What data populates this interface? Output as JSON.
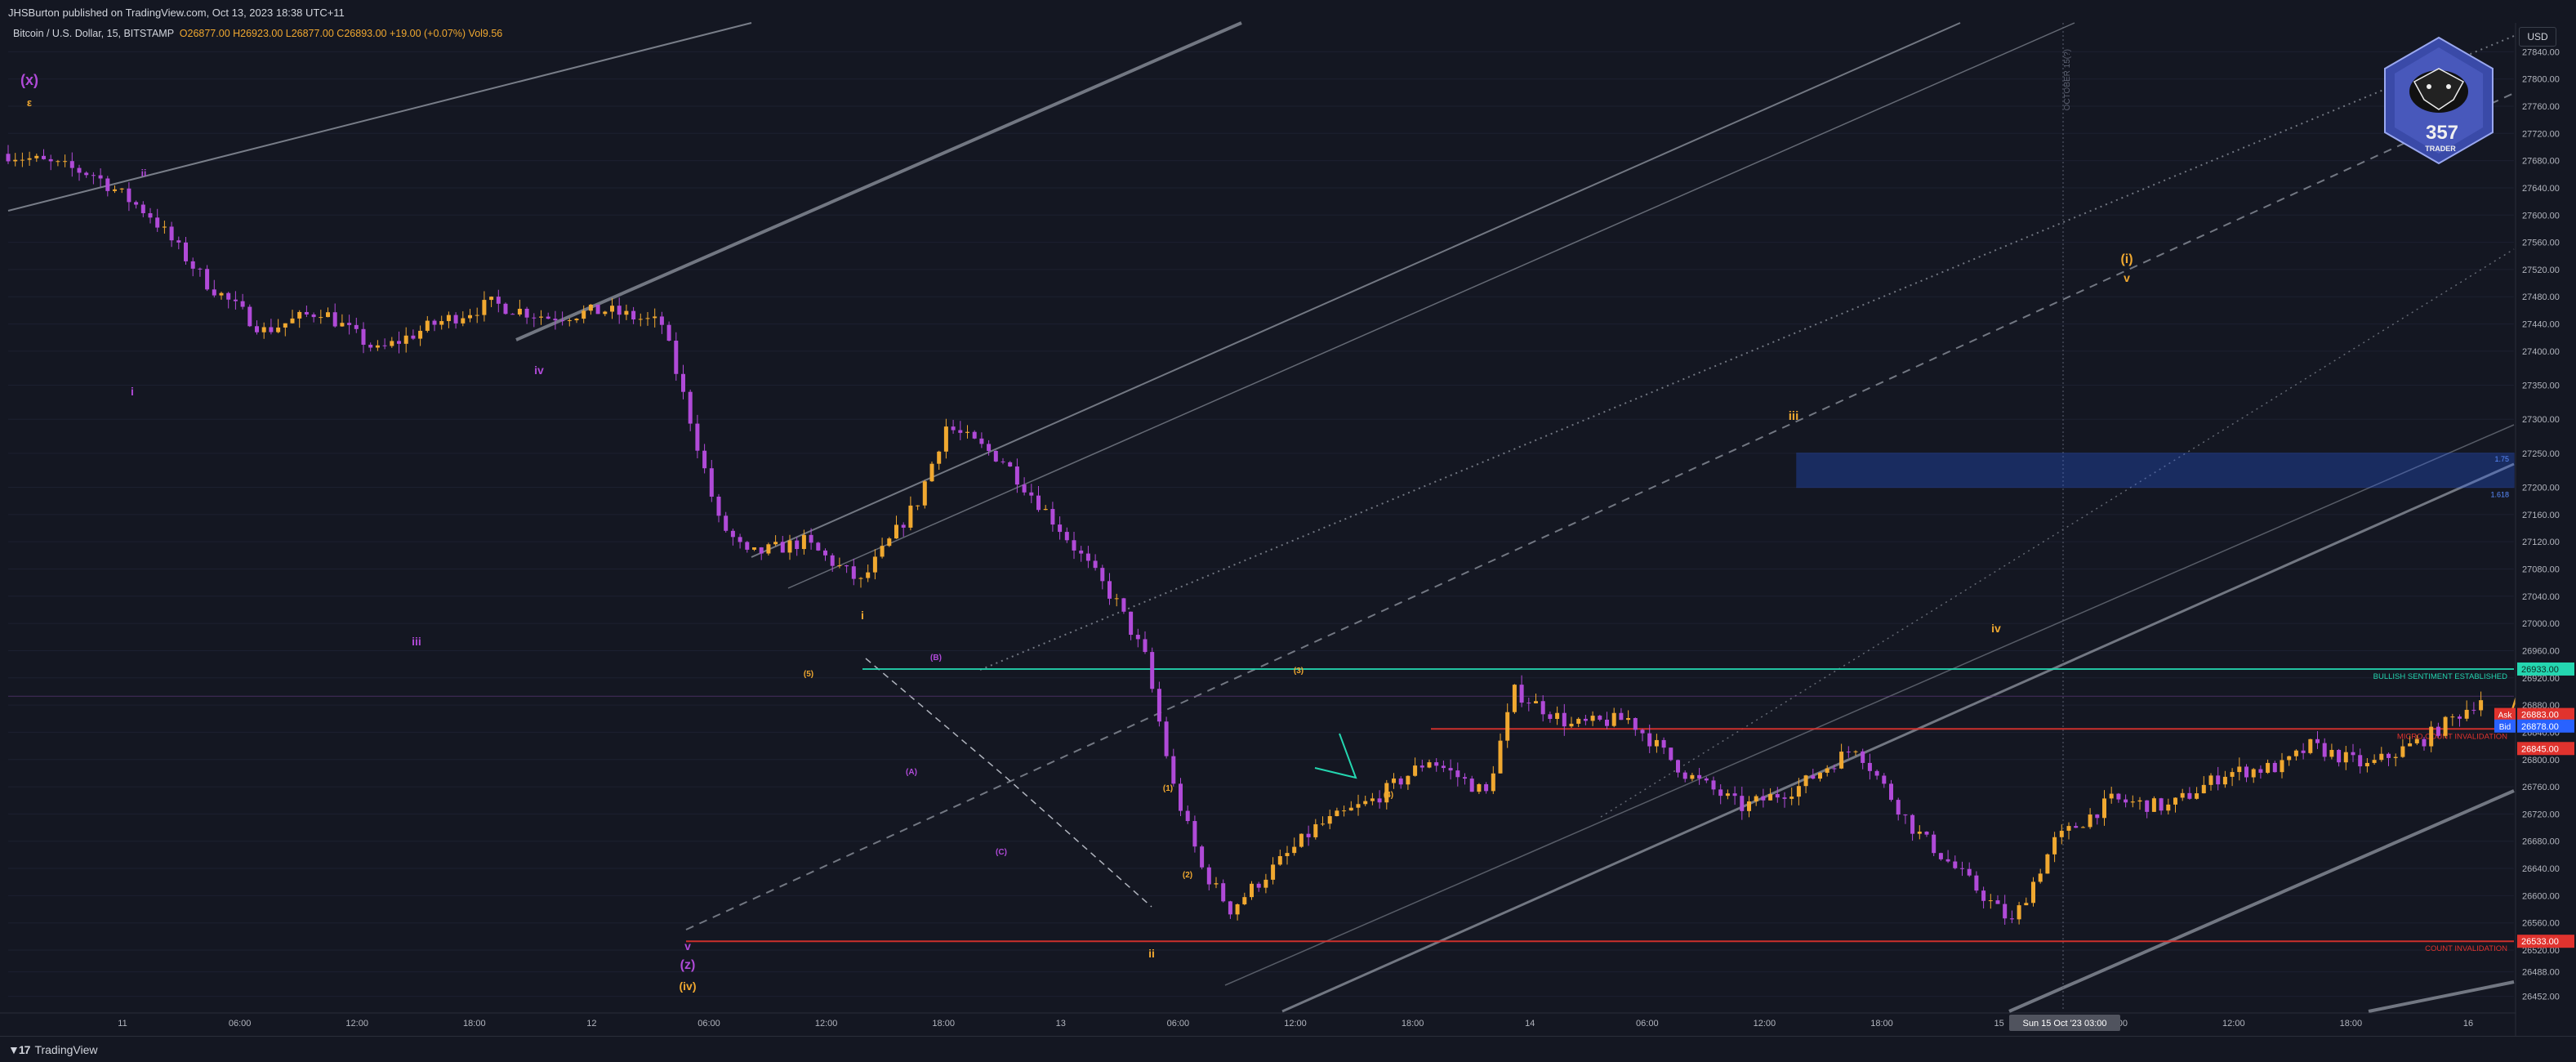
{
  "header": {
    "published_text": "JHSBurton published on TradingView.com, Oct 13, 2023 18:38 UTC+11",
    "symbol_text": "Bitcoin / U.S. Dollar, 15, BITSTAMP",
    "ohlc_text": "O26877.00  H26923.00  L26877.00  C26893.00  +19.00 (+0.07%)  Vol9.56"
  },
  "currency": "USD",
  "footer_brand": "TradingView",
  "logo_text": "357",
  "logo_subtext": "TRADER",
  "colors": {
    "background": "#141722",
    "purple": "#b04ad8",
    "orange": "#f0a830",
    "teal": "#24d6b0",
    "red": "#e0332e",
    "grey_line": "#9aa0ab",
    "blue_zone": "#2962ff"
  },
  "chart_data": {
    "type": "candlestick",
    "symbol": "BTCUSD",
    "exchange": "BITSTAMP",
    "interval": "15",
    "ylim": [
      26430,
      27880
    ],
    "y_ticks": [
      26452,
      26488,
      26520,
      26560,
      26600,
      26640,
      26680,
      26720,
      26760,
      26800,
      26840,
      26880,
      26920,
      26960,
      27000,
      27040,
      27080,
      27120,
      27160,
      27200,
      27250,
      27300,
      27350,
      27400,
      27440,
      27480,
      27520,
      27560,
      27600,
      27640,
      27680,
      27720,
      27760,
      27800,
      27840
    ],
    "x_ticks": [
      "11",
      "06:00",
      "12:00",
      "18:00",
      "12",
      "06:00",
      "12:00",
      "18:00",
      "13",
      "06:00",
      "12:00",
      "18:00",
      "14",
      "06:00",
      "12:00",
      "18:00",
      "15",
      "06:00",
      "12:00",
      "18:00",
      "16"
    ],
    "crosshair_x_label": "Sun 15 Oct '23   03:00",
    "vertical_text": "OCTOBER 15(?)",
    "price_path": [
      [
        0,
        27690
      ],
      [
        60,
        27660
      ],
      [
        100,
        27600
      ],
      [
        140,
        27500
      ],
      [
        180,
        27430
      ],
      [
        220,
        27460
      ],
      [
        260,
        27400
      ],
      [
        300,
        27440
      ],
      [
        340,
        27470
      ],
      [
        380,
        27450
      ],
      [
        420,
        27460
      ],
      [
        460,
        27440
      ],
      [
        480,
        27300
      ],
      [
        500,
        27150
      ],
      [
        520,
        27100
      ],
      [
        560,
        27120
      ],
      [
        600,
        27060
      ],
      [
        640,
        27180
      ],
      [
        660,
        27290
      ],
      [
        700,
        27240
      ],
      [
        740,
        27140
      ],
      [
        780,
        27030
      ],
      [
        800,
        26950
      ],
      [
        820,
        26760
      ],
      [
        840,
        26640
      ],
      [
        860,
        26580
      ],
      [
        880,
        26620
      ],
      [
        920,
        26700
      ],
      [
        960,
        26740
      ],
      [
        1000,
        26800
      ],
      [
        1040,
        26750
      ],
      [
        1060,
        26900
      ],
      [
        1100,
        26850
      ],
      [
        1140,
        26860
      ],
      [
        1180,
        26780
      ],
      [
        1220,
        26730
      ],
      [
        1260,
        26760
      ],
      [
        1300,
        26820
      ],
      [
        1340,
        26700
      ],
      [
        1380,
        26620
      ],
      [
        1410,
        26560
      ],
      [
        1440,
        26680
      ],
      [
        1480,
        26740
      ],
      [
        1520,
        26730
      ],
      [
        1560,
        26780
      ],
      [
        1600,
        26790
      ],
      [
        1620,
        26820
      ],
      [
        1660,
        26790
      ],
      [
        1700,
        26830
      ],
      [
        1740,
        26890
      ]
    ],
    "horizontal_levels": [
      {
        "price": 26933,
        "label": "BULLISH SENTIMENT ESTABLISHED",
        "color": "teal"
      },
      {
        "price": 26845,
        "label": "MICRO COUNT INVALIDATION",
        "color": "red"
      },
      {
        "price": 26533,
        "label": "COUNT INVALIDATION",
        "color": "red"
      }
    ],
    "price_tags": [
      {
        "price": 26933,
        "text": "26933.00",
        "color": "#24d6b0"
      },
      {
        "price": 26893,
        "text": "06:39",
        "color": "#f0a830"
      },
      {
        "price": 26883,
        "text": "26883.00",
        "color": "#e0332e",
        "side": "Ask"
      },
      {
        "price": 26878,
        "text": "26878.00",
        "color": "#2962ff",
        "side": "Bid"
      },
      {
        "price": 26845,
        "text": "26845.00",
        "color": "#e0332e"
      },
      {
        "price": 26533,
        "text": "26533.00",
        "color": "#e0332e"
      }
    ],
    "target_zone": {
      "top": 27250,
      "bottom": 27200,
      "label_top": "1.75",
      "label_bottom": "1.618"
    },
    "projection_path": [
      [
        1760,
        26860
      ],
      [
        1780,
        26990
      ],
      [
        1830,
        26920
      ],
      [
        1890,
        27090
      ],
      [
        2080,
        26960
      ],
      [
        2200,
        27250
      ],
      [
        2440,
        27000
      ],
      [
        2600,
        27460
      ]
    ],
    "wave_labels": [
      {
        "text": "(x)",
        "color": "purple"
      },
      {
        "text": "ε",
        "color": "orange"
      },
      {
        "text": "i",
        "color": "purple"
      },
      {
        "text": "ii",
        "color": "purple"
      },
      {
        "text": "iii",
        "color": "purple"
      },
      {
        "text": "iv",
        "color": "purple"
      },
      {
        "text": "v",
        "color": "purple"
      },
      {
        "text": "(z)",
        "color": "purple"
      },
      {
        "text": "(iv)",
        "color": "orange"
      },
      {
        "text": "i",
        "color": "orange"
      },
      {
        "text": "ii",
        "color": "orange"
      },
      {
        "text": "iii",
        "color": "orange"
      },
      {
        "text": "iv",
        "color": "orange"
      },
      {
        "text": "(i)",
        "color": "orange"
      },
      {
        "text": "v",
        "color": "orange"
      },
      {
        "text": "(A)",
        "color": "purple"
      },
      {
        "text": "(B)",
        "color": "purple"
      },
      {
        "text": "(C)",
        "color": "purple"
      },
      {
        "text": "(1)",
        "color": "orange"
      },
      {
        "text": "(2)",
        "color": "orange"
      },
      {
        "text": "(3)",
        "color": "orange"
      },
      {
        "text": "(4)",
        "color": "orange"
      },
      {
        "text": "(5)",
        "color": "orange"
      }
    ]
  }
}
